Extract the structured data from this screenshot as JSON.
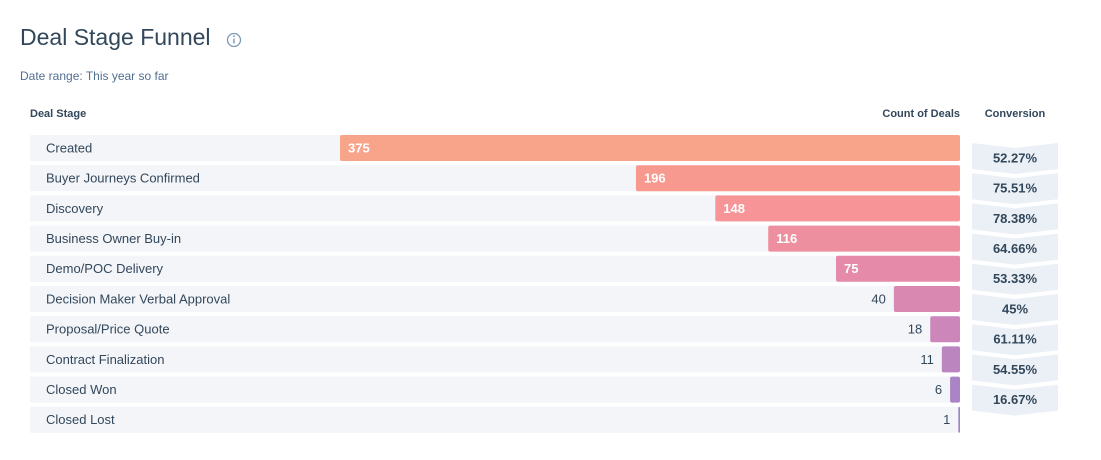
{
  "chart_data": {
    "type": "funnel",
    "title": "Deal Stage Funnel",
    "subtitle": "Date range: This year so far",
    "category_header": "Deal Stage",
    "value_header": "Count of Deals",
    "categories": [
      "Created",
      "Buyer Journeys Confirmed",
      "Discovery",
      "Business Owner Buy-in",
      "Demo/POC Delivery",
      "Decision Maker Verbal Approval",
      "Proposal/Price Quote",
      "Contract Finalization",
      "Closed Won",
      "Closed Lost"
    ],
    "values": [
      375,
      196,
      148,
      116,
      75,
      40,
      18,
      11,
      6,
      1
    ],
    "colors": [
      "#f8a48a",
      "#f8998f",
      "#f79498",
      "#ee8fa0",
      "#e58aa8",
      "#d988b2",
      "#cc86ba",
      "#bb86c0",
      "#aa84c4",
      "#9b83c8"
    ],
    "conversion": {
      "header": "Conversion",
      "values": [
        52.27,
        75.51,
        78.38,
        64.66,
        53.33,
        45,
        61.11,
        54.55,
        16.67
      ],
      "value_labels": [
        "52.27%",
        "75.51%",
        "78.38%",
        "64.66%",
        "53.33%",
        "45%",
        "61.11%",
        "54.55%",
        "16.67%"
      ]
    }
  }
}
